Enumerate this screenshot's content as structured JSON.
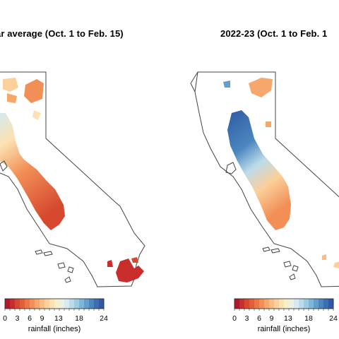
{
  "panels": [
    {
      "title": "ar average (Oct. 1 to Feb. 15)"
    },
    {
      "title": "2022-23 (Oct. 1 to Feb. 1"
    }
  ],
  "legend": {
    "tick_labels": [
      "0",
      "3",
      "6",
      "9",
      "13",
      "18",
      "24"
    ],
    "right_tick_labels": [
      "0",
      "3",
      "6",
      "9",
      "13",
      "18",
      "24"
    ],
    "axis_title": "rainfall (inches)",
    "colors": [
      "#b2182b",
      "#c92e2d",
      "#d6492f",
      "#e0603a",
      "#ea7846",
      "#f28f57",
      "#f6a76c",
      "#f9bd83",
      "#fbd09a",
      "#fbe2b2",
      "#f7efc9",
      "#eaf1e4",
      "#d6e9ef",
      "#bbdbea",
      "#9ccbe2",
      "#7db6d7",
      "#629fcb",
      "#4b86bf",
      "#3b6fb1",
      "#2f5aa3"
    ]
  }
}
